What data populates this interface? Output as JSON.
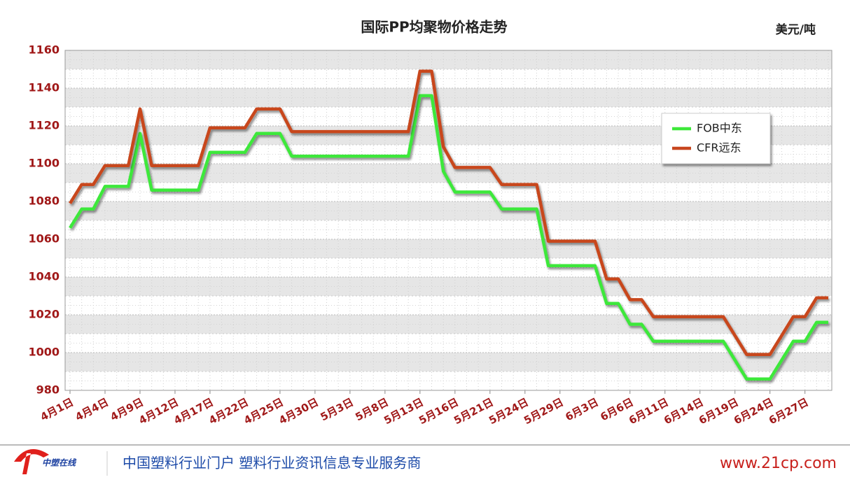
{
  "chart_data": {
    "type": "line",
    "title": "国际PP均聚物价格走势",
    "unit_label": "美元/吨",
    "categories": [
      "4月1日",
      null,
      null,
      "4月4日",
      null,
      null,
      "4月9日",
      null,
      null,
      "4月12日",
      null,
      null,
      "4月17日",
      null,
      null,
      "4月22日",
      null,
      null,
      "4月25日",
      null,
      null,
      "4月30日",
      null,
      null,
      "5月3日",
      null,
      null,
      "5月8日",
      null,
      null,
      "5月13日",
      null,
      null,
      "5月16日",
      null,
      null,
      "5月21日",
      null,
      null,
      "5月24日",
      null,
      null,
      "5月29日",
      null,
      null,
      "6月3日",
      null,
      null,
      "6月6日",
      null,
      null,
      "6月11日",
      null,
      null,
      "6月14日",
      null,
      null,
      "6月19日",
      null,
      null,
      "6月24日",
      null,
      null,
      "6月27日",
      null,
      null
    ],
    "series": [
      {
        "name": "FOB中东",
        "color": "#3ee83a",
        "values": [
          1066,
          1076,
          1076,
          1088,
          1088,
          1088,
          1116,
          1086,
          1086,
          1086,
          1086,
          1086,
          1106,
          1106,
          1106,
          1106,
          1116,
          1116,
          1116,
          1104,
          1104,
          1104,
          1104,
          1104,
          1104,
          1104,
          1104,
          1104,
          1104,
          1104,
          1136,
          1136,
          1096,
          1085,
          1085,
          1085,
          1085,
          1076,
          1076,
          1076,
          1076,
          1046,
          1046,
          1046,
          1046,
          1046,
          1026,
          1026,
          1015,
          1015,
          1006,
          1006,
          1006,
          1006,
          1006,
          1006,
          1006,
          996,
          986,
          986,
          986,
          996,
          1006,
          1006,
          1016,
          1016
        ]
      },
      {
        "name": "CFR远东",
        "color": "#c8461e",
        "values": [
          1079,
          1089,
          1089,
          1099,
          1099,
          1099,
          1129,
          1099,
          1099,
          1099,
          1099,
          1099,
          1119,
          1119,
          1119,
          1119,
          1129,
          1129,
          1129,
          1117,
          1117,
          1117,
          1117,
          1117,
          1117,
          1117,
          1117,
          1117,
          1117,
          1117,
          1149,
          1149,
          1109,
          1098,
          1098,
          1098,
          1098,
          1089,
          1089,
          1089,
          1089,
          1059,
          1059,
          1059,
          1059,
          1059,
          1039,
          1039,
          1028,
          1028,
          1019,
          1019,
          1019,
          1019,
          1019,
          1019,
          1019,
          1009,
          999,
          999,
          999,
          1009,
          1019,
          1019,
          1029,
          1029
        ]
      }
    ],
    "ylim": [
      980,
      1160
    ],
    "yticks": [
      980,
      1000,
      1020,
      1040,
      1060,
      1080,
      1100,
      1120,
      1140,
      1160
    ],
    "grid": true,
    "legend": "upper right"
  },
  "footer": {
    "logo": "中塑在线",
    "slogan": "中国塑料行业门户 塑料行业资讯信息专业服务商",
    "url": "www.21cp.com"
  }
}
